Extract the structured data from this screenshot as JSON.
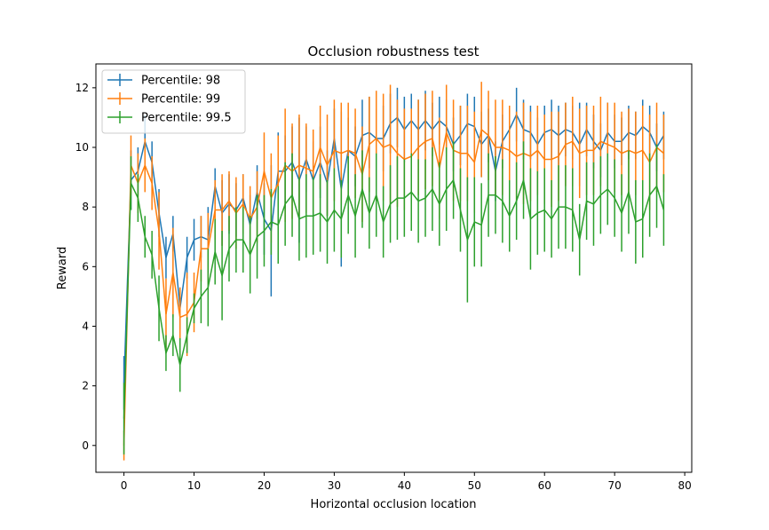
{
  "chart_data": {
    "type": "line",
    "title": "Occlusion robustness test",
    "xlabel": "Horizontal occlusion location",
    "ylabel": "Reward",
    "xlim": [
      -4,
      81
    ],
    "ylim": [
      -0.9,
      12.8
    ],
    "xticks": [
      0,
      10,
      20,
      30,
      40,
      50,
      60,
      70,
      80
    ],
    "yticks": [
      0,
      2,
      4,
      6,
      8,
      10,
      12
    ],
    "grid": false,
    "legend": "top-left",
    "x": [
      0,
      1,
      2,
      3,
      4,
      5,
      6,
      7,
      8,
      9,
      10,
      11,
      12,
      13,
      14,
      15,
      16,
      17,
      18,
      19,
      20,
      21,
      22,
      23,
      24,
      25,
      26,
      27,
      28,
      29,
      30,
      31,
      32,
      33,
      34,
      35,
      36,
      37,
      38,
      39,
      40,
      41,
      42,
      43,
      44,
      45,
      46,
      47,
      48,
      49,
      50,
      51,
      52,
      53,
      54,
      55,
      56,
      57,
      58,
      59,
      60,
      61,
      62,
      63,
      64,
      65,
      66,
      67,
      68,
      69,
      70,
      71,
      72,
      73,
      74,
      75,
      76,
      77
    ],
    "series": [
      {
        "name": "Percentile: 98",
        "color": "#1f77b4",
        "values": [
          2.1,
          8.9,
          9.2,
          10.2,
          9.5,
          7.8,
          6.3,
          7.1,
          4.6,
          6.3,
          6.9,
          7.0,
          6.9,
          8.7,
          7.8,
          8.1,
          7.9,
          8.3,
          7.4,
          8.5,
          7.6,
          7.2,
          9.2,
          9.2,
          9.5,
          8.9,
          9.6,
          8.9,
          9.5,
          8.8,
          10.3,
          8.6,
          9.9,
          9.7,
          10.4,
          10.5,
          10.3,
          10.3,
          10.8,
          11.0,
          10.6,
          10.9,
          10.6,
          10.9,
          10.6,
          10.9,
          10.7,
          10.1,
          10.4,
          10.8,
          10.7,
          10.1,
          10.4,
          9.2,
          10.2,
          10.6,
          11.1,
          10.6,
          10.5,
          10.1,
          10.5,
          10.6,
          10.4,
          10.6,
          10.5,
          10.1,
          10.6,
          10.2,
          9.9,
          10.5,
          10.2,
          10.2,
          10.5,
          10.4,
          10.7,
          10.5,
          10.0,
          10.4
        ],
        "errors": [
          0.9,
          1.0,
          0.8,
          0.9,
          0.7,
          0.8,
          0.7,
          0.6,
          0.7,
          0.7,
          0.7,
          0.7,
          1.1,
          0.6,
          1.1,
          1.0,
          0.9,
          0.8,
          1.0,
          0.9,
          1.2,
          2.2,
          1.3,
          1.2,
          1.2,
          2.1,
          1.1,
          1.3,
          1.2,
          1.1,
          1.0,
          2.6,
          1.1,
          1.0,
          1.2,
          1.2,
          1.0,
          1.1,
          1.0,
          1.0,
          1.1,
          0.9,
          1.0,
          1.0,
          0.9,
          0.8,
          0.9,
          0.9,
          1.0,
          1.0,
          1.0,
          1.1,
          0.9,
          1.0,
          0.9,
          0.8,
          0.9,
          1.0,
          0.9,
          0.9,
          0.9,
          1.0,
          1.0,
          0.9,
          0.9,
          1.4,
          0.9,
          0.9,
          0.9,
          1.0,
          0.9,
          0.8,
          0.9,
          0.8,
          0.9,
          0.9,
          0.8,
          0.8
        ]
      },
      {
        "name": "Percentile: 99",
        "color": "#ff7f0e",
        "values": [
          0.0,
          9.4,
          8.8,
          9.4,
          8.8,
          7.2,
          4.4,
          5.8,
          4.3,
          4.4,
          4.8,
          6.6,
          6.6,
          7.9,
          7.9,
          8.2,
          7.8,
          8.1,
          7.6,
          8.0,
          9.2,
          8.3,
          8.8,
          9.4,
          9.2,
          9.4,
          9.3,
          9.2,
          10.0,
          9.4,
          9.9,
          9.8,
          9.9,
          9.8,
          9.1,
          10.1,
          10.3,
          10.0,
          10.1,
          9.8,
          9.6,
          9.7,
          10.0,
          10.2,
          10.3,
          9.3,
          10.5,
          9.9,
          9.8,
          9.8,
          9.5,
          10.6,
          10.4,
          10.0,
          10.0,
          9.9,
          9.7,
          9.8,
          9.7,
          9.9,
          9.6,
          9.6,
          9.7,
          10.1,
          10.2,
          9.8,
          9.9,
          9.9,
          10.2,
          10.1,
          10.0,
          9.8,
          9.9,
          9.8,
          9.9,
          9.5,
          10.0,
          9.8
        ],
        "errors": [
          0.5,
          1.0,
          1.0,
          0.9,
          0.9,
          1.3,
          1.2,
          1.5,
          1.0,
          1.4,
          1.0,
          1.1,
          1.2,
          1.0,
          1.2,
          1.0,
          1.2,
          1.0,
          1.1,
          1.2,
          1.3,
          1.5,
          1.6,
          1.9,
          1.6,
          1.7,
          1.5,
          1.4,
          1.4,
          1.7,
          1.7,
          1.7,
          1.6,
          1.5,
          1.6,
          1.6,
          1.6,
          1.8,
          2.0,
          1.8,
          1.7,
          1.6,
          1.6,
          1.6,
          1.6,
          1.7,
          1.6,
          1.7,
          1.6,
          1.6,
          1.7,
          1.6,
          1.5,
          1.6,
          1.6,
          1.5,
          1.5,
          1.7,
          1.5,
          1.5,
          1.5,
          1.6,
          1.5,
          1.4,
          1.5,
          1.5,
          1.5,
          1.5,
          1.5,
          1.4,
          1.5,
          1.4,
          1.4,
          1.4,
          1.5,
          1.6,
          1.5,
          1.3
        ]
      },
      {
        "name": "Percentile: 99.5",
        "color": "#2ca02c",
        "values": [
          0.9,
          8.8,
          8.3,
          7.0,
          6.4,
          4.6,
          3.1,
          3.7,
          2.7,
          3.7,
          4.6,
          5.0,
          5.3,
          6.5,
          5.7,
          6.6,
          6.9,
          6.9,
          6.4,
          7.0,
          7.2,
          7.5,
          7.4,
          8.1,
          8.4,
          7.6,
          7.7,
          7.7,
          7.8,
          7.5,
          7.9,
          7.6,
          8.4,
          7.7,
          8.6,
          7.8,
          8.4,
          7.5,
          8.1,
          8.3,
          8.3,
          8.5,
          8.2,
          8.3,
          8.6,
          8.1,
          8.6,
          8.9,
          7.9,
          6.9,
          7.5,
          7.4,
          8.4,
          8.4,
          8.2,
          7.7,
          8.2,
          8.9,
          7.6,
          7.8,
          7.9,
          7.6,
          8.0,
          8.0,
          7.9,
          6.9,
          8.2,
          8.1,
          8.4,
          8.6,
          8.3,
          7.8,
          8.5,
          7.5,
          7.6,
          8.4,
          8.7,
          7.9
        ],
        "errors": [
          1.2,
          0.9,
          0.8,
          0.7,
          0.8,
          1.1,
          0.6,
          0.7,
          0.9,
          0.6,
          0.5,
          0.9,
          1.3,
          1.1,
          1.5,
          1.1,
          1.1,
          1.1,
          1.3,
          1.4,
          1.2,
          1.1,
          1.3,
          1.4,
          1.4,
          1.4,
          1.4,
          1.3,
          1.3,
          1.4,
          1.4,
          1.3,
          1.3,
          1.4,
          1.3,
          1.2,
          1.4,
          1.2,
          1.3,
          1.4,
          1.3,
          1.3,
          1.4,
          1.3,
          1.4,
          1.4,
          1.4,
          1.3,
          1.4,
          2.1,
          1.5,
          1.4,
          1.4,
          1.3,
          1.4,
          1.2,
          1.3,
          1.3,
          1.7,
          1.4,
          1.4,
          1.3,
          1.4,
          1.4,
          1.4,
          1.2,
          1.3,
          1.4,
          1.3,
          1.2,
          1.3,
          1.3,
          1.4,
          1.4,
          1.3,
          1.4,
          1.4,
          1.2
        ]
      }
    ]
  }
}
